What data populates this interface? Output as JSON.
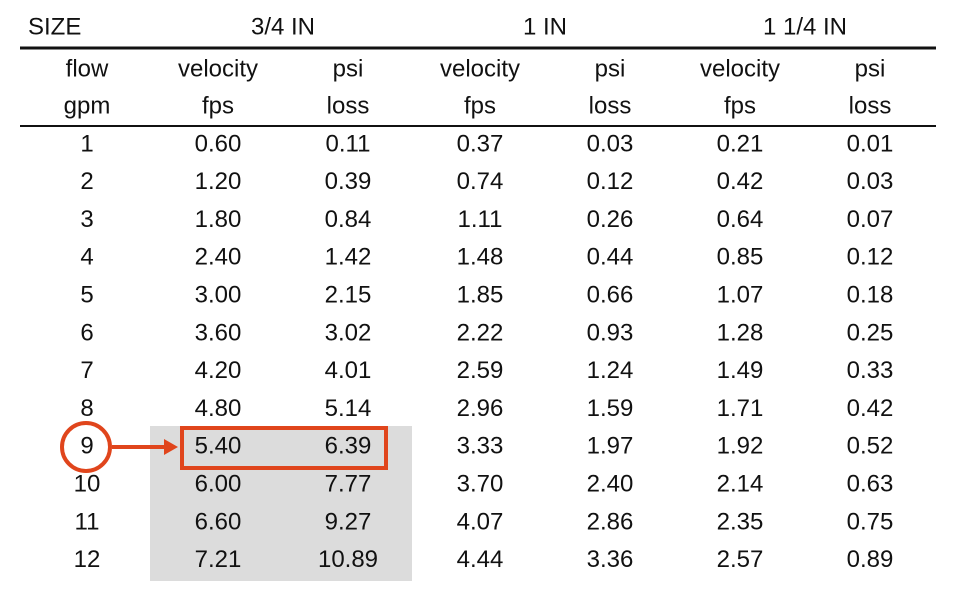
{
  "table": {
    "size_row": [
      "SIZE",
      "3/4 IN",
      "1 IN",
      "1 1/4 IN"
    ],
    "header_rows": [
      [
        "flow",
        "velocity",
        "psi",
        "velocity",
        "psi",
        "velocity",
        "psi"
      ],
      [
        "gpm",
        "fps",
        "loss",
        "fps",
        "loss",
        "fps",
        "loss"
      ]
    ],
    "rows": [
      [
        "1",
        "0.60",
        "0.11",
        "0.37",
        "0.03",
        "0.21",
        "0.01"
      ],
      [
        "2",
        "1.20",
        "0.39",
        "0.74",
        "0.12",
        "0.42",
        "0.03"
      ],
      [
        "3",
        "1.80",
        "0.84",
        "1.11",
        "0.26",
        "0.64",
        "0.07"
      ],
      [
        "4",
        "2.40",
        "1.42",
        "1.48",
        "0.44",
        "0.85",
        "0.12"
      ],
      [
        "5",
        "3.00",
        "2.15",
        "1.85",
        "0.66",
        "1.07",
        "0.18"
      ],
      [
        "6",
        "3.60",
        "3.02",
        "2.22",
        "0.93",
        "1.28",
        "0.25"
      ],
      [
        "7",
        "4.20",
        "4.01",
        "2.59",
        "1.24",
        "1.49",
        "0.33"
      ],
      [
        "8",
        "4.80",
        "5.14",
        "2.96",
        "1.59",
        "1.71",
        "0.42"
      ],
      [
        "9",
        "5.40",
        "6.39",
        "3.33",
        "1.97",
        "1.92",
        "0.52"
      ],
      [
        "10",
        "6.00",
        "7.77",
        "3.70",
        "2.40",
        "2.14",
        "0.63"
      ],
      [
        "11",
        "6.60",
        "9.27",
        "4.07",
        "2.86",
        "2.35",
        "0.75"
      ],
      [
        "12",
        "7.21",
        "10.89",
        "4.44",
        "3.36",
        "2.57",
        "0.89"
      ]
    ]
  }
}
